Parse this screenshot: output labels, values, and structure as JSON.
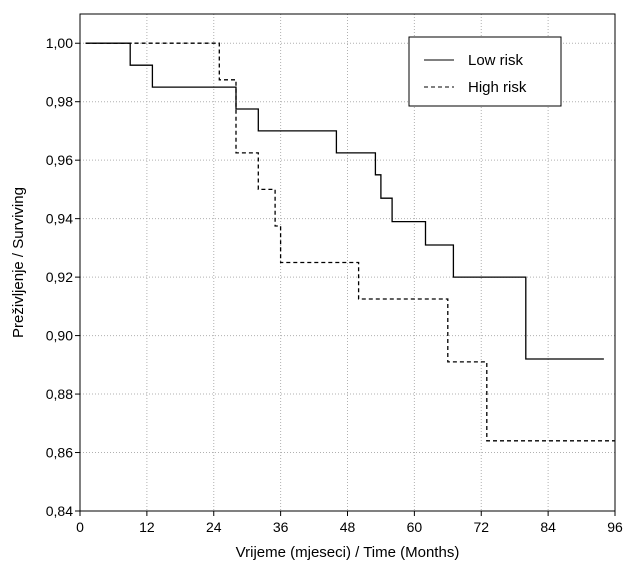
{
  "chart_data": {
    "type": "line",
    "step": true,
    "xlabel": "Vrijeme (mjeseci) / Time (Months)",
    "ylabel": "Preživljenje / Surviving",
    "xlim": [
      0,
      96
    ],
    "ylim": [
      0.84,
      1.01
    ],
    "xticks": [
      0,
      12,
      24,
      36,
      48,
      60,
      72,
      84,
      96
    ],
    "xtick_labels": [
      "0",
      "12",
      "24",
      "36",
      "48",
      "60",
      "72",
      "84",
      "96"
    ],
    "yticks": [
      0.84,
      0.86,
      0.88,
      0.9,
      0.92,
      0.94,
      0.96,
      0.98,
      1.0
    ],
    "ytick_labels": [
      "0,84",
      "0,86",
      "0,88",
      "0,90",
      "0,92",
      "0,94",
      "0,96",
      "0,98",
      "1,00"
    ],
    "grid": true,
    "legend_position": "top-right",
    "colors": {
      "line": "#000000",
      "grid": "#b0b0b0"
    },
    "series": [
      {
        "name": "Low risk",
        "style": "solid",
        "points": [
          [
            1,
            1.0
          ],
          [
            9,
            1.0
          ],
          [
            9,
            0.9925
          ],
          [
            13,
            0.9925
          ],
          [
            13,
            0.985
          ],
          [
            28,
            0.985
          ],
          [
            28,
            0.9775
          ],
          [
            32,
            0.9775
          ],
          [
            32,
            0.97
          ],
          [
            46,
            0.97
          ],
          [
            46,
            0.9625
          ],
          [
            53,
            0.9625
          ],
          [
            53,
            0.955
          ],
          [
            54,
            0.955
          ],
          [
            54,
            0.947
          ],
          [
            56,
            0.947
          ],
          [
            56,
            0.939
          ],
          [
            62,
            0.939
          ],
          [
            62,
            0.931
          ],
          [
            67,
            0.931
          ],
          [
            67,
            0.92
          ],
          [
            80,
            0.92
          ],
          [
            80,
            0.892
          ],
          [
            94,
            0.892
          ]
        ]
      },
      {
        "name": "High risk",
        "style": "dashed",
        "points": [
          [
            1,
            1.0
          ],
          [
            25,
            1.0
          ],
          [
            25,
            0.9875
          ],
          [
            28,
            0.9875
          ],
          [
            28,
            0.9625
          ],
          [
            32,
            0.9625
          ],
          [
            32,
            0.95
          ],
          [
            35,
            0.95
          ],
          [
            35,
            0.9375
          ],
          [
            36,
            0.9375
          ],
          [
            36,
            0.925
          ],
          [
            50,
            0.925
          ],
          [
            50,
            0.9125
          ],
          [
            66,
            0.9125
          ],
          [
            66,
            0.891
          ],
          [
            73,
            0.891
          ],
          [
            73,
            0.864
          ],
          [
            96,
            0.864
          ]
        ]
      }
    ]
  }
}
